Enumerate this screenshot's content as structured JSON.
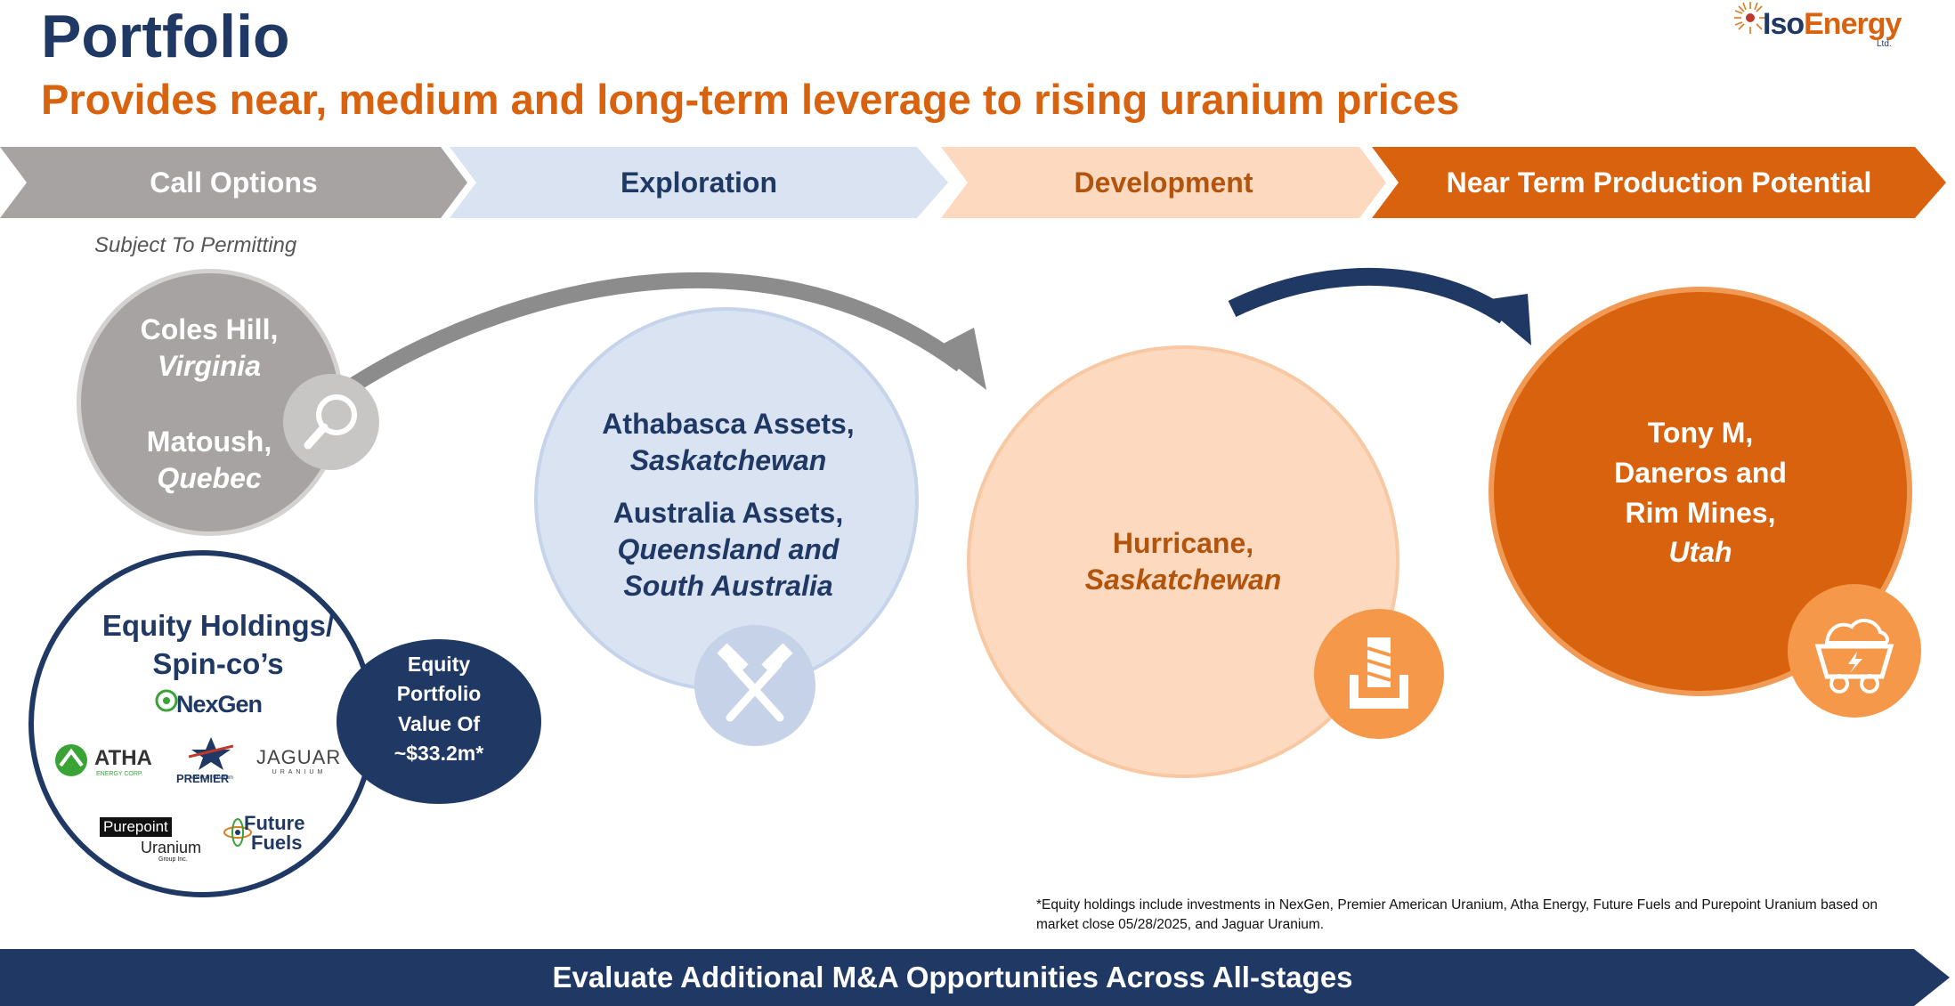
{
  "header": {
    "title": "Portfolio",
    "subtitle": "Provides near, medium and long-term leverage to rising uranium prices"
  },
  "logo": {
    "brand_iso": "Iso",
    "brand_energy": "Energy",
    "suffix": "Ltd."
  },
  "stages": [
    {
      "label": "Call Options",
      "color": "#a7a3a2",
      "text_color": "#ffffff"
    },
    {
      "label": "Exploration",
      "color": "#d9e3f2",
      "text_color": "#1f3864"
    },
    {
      "label": "Development",
      "color": "#fcd9bf",
      "text_color": "#b3540c"
    },
    {
      "label": "Near Term Production Potential",
      "color": "#d9620e",
      "text_color": "#ffffff"
    }
  ],
  "call_options": {
    "note": "Subject To Permitting",
    "asset1_name": "Coles Hill,",
    "asset1_region": "Virginia",
    "asset2_name": "Matoush,",
    "asset2_region": "Quebec",
    "icon": "magnifier-icon"
  },
  "equity": {
    "title_line1": "Equity Holdings/",
    "title_line2": "Spin-co’s",
    "value_line1": "Equity",
    "value_line2": "Portfolio",
    "value_line3": "Value Of",
    "value_line4": "~$33.2m*",
    "logos": {
      "nexgen": "NexGen",
      "atha": "ATHA",
      "atha_sub": "ENERGY CORP.",
      "premier": "PREMIER",
      "premier_sub": "American Uranium",
      "jaguar": "JAGUAR",
      "jaguar_sub": "URANIUM",
      "purepoint": "Purepoint",
      "purepoint_sub": "Uranium",
      "purepoint_sub2": "Group Inc.",
      "future1": "Future",
      "future2": "Fuels"
    }
  },
  "exploration": {
    "asset1_name": "Athabasca Assets,",
    "asset1_region": "Saskatchewan",
    "asset2_name": "Australia Assets,",
    "asset2_region_line1": "Queensland and",
    "asset2_region_line2": "South Australia",
    "icon": "crossed-hammers-icon"
  },
  "development": {
    "asset_name": "Hurricane,",
    "asset_region": "Saskatchewan",
    "icon": "drill-icon"
  },
  "production": {
    "line1": "Tony M,",
    "line2": "Daneros and",
    "line3": "Rim Mines,",
    "region": "Utah",
    "icon": "mine-cart-icon"
  },
  "footnote": "*Equity holdings include investments in NexGen, Premier American Uranium, Atha Energy, Future Fuels and Purepoint Uranium based on market close 05/28/2025, and Jaguar Uranium.",
  "bottom_banner": "Evaluate Additional M&A Opportunities Across All-stages"
}
